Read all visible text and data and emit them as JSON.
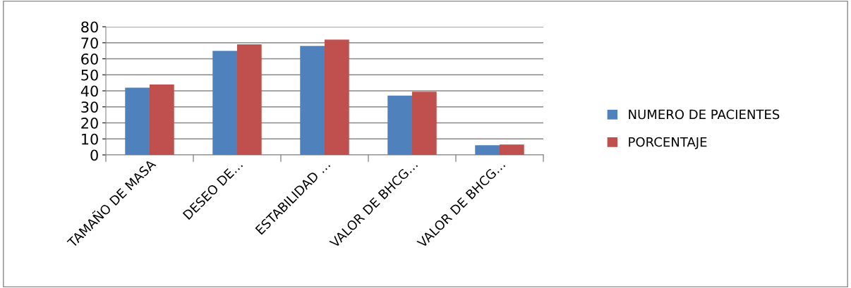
{
  "chart_data": {
    "type": "bar",
    "categories": [
      "TAMAÑO DE MASA",
      "DESEO DE…",
      "ESTABILIDAD …",
      "VALOR DE BHCG…",
      "VALOR DE BHCG…"
    ],
    "series": [
      {
        "name": "NUMERO DE PACIENTES",
        "color": "#4f81bd",
        "values": [
          42,
          65,
          68,
          37,
          6
        ]
      },
      {
        "name": "PORCENTAJE",
        "color": "#c0504d",
        "values": [
          44,
          69,
          72,
          39.5,
          6.5
        ]
      }
    ],
    "ylim": [
      0,
      80
    ],
    "yticks": [
      0,
      10,
      20,
      30,
      40,
      50,
      60,
      70,
      80
    ],
    "grid": "y",
    "legend": "right"
  }
}
